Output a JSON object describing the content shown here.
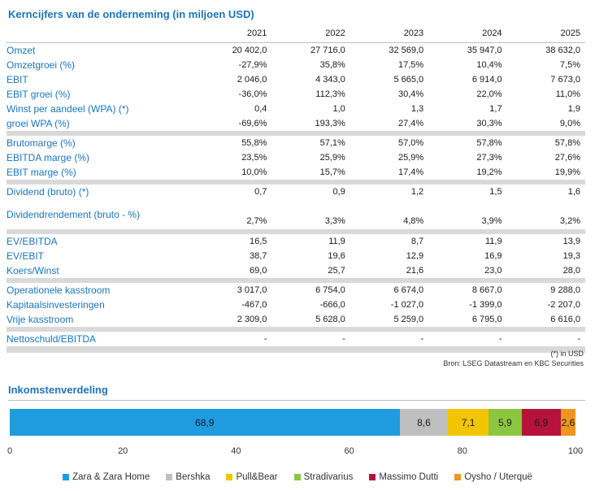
{
  "title": "Kerncijfers van de onderneming (in miljoen USD)",
  "years": [
    "2021",
    "2022",
    "2023",
    "2024",
    "2025"
  ],
  "groups": [
    [
      {
        "label": "Omzet",
        "values": [
          "20 402,0",
          "27 716,0",
          "32 569,0",
          "35 947,0",
          "38 632,0"
        ]
      },
      {
        "label": "Omzetgroei (%)",
        "values": [
          "-27,9%",
          "35,8%",
          "17,5%",
          "10,4%",
          "7,5%"
        ]
      },
      {
        "label": "EBIT",
        "values": [
          "2 046,0",
          "4 343,0",
          "5 665,0",
          "6 914,0",
          "7 673,0"
        ]
      },
      {
        "label": "EBIT groei (%)",
        "values": [
          "-36,0%",
          "112,3%",
          "30,4%",
          "22,0%",
          "11,0%"
        ]
      },
      {
        "label": "Winst per aandeel (WPA) (*)",
        "values": [
          "0,4",
          "1,0",
          "1,3",
          "1,7",
          "1,9"
        ]
      },
      {
        "label": "groei WPA (%)",
        "values": [
          "-69,6%",
          "193,3%",
          "27,4%",
          "30,3%",
          "9,0%"
        ]
      }
    ],
    [
      {
        "label": "Brutomarge (%)",
        "values": [
          "55,8%",
          "57,1%",
          "57,0%",
          "57,8%",
          "57,8%"
        ]
      },
      {
        "label": "EBITDA marge (%)",
        "values": [
          "23,5%",
          "25,9%",
          "25,9%",
          "27,3%",
          "27,6%"
        ]
      },
      {
        "label": "EBIT marge (%)",
        "values": [
          "10,0%",
          "15,7%",
          "17,4%",
          "19,2%",
          "19,9%"
        ]
      }
    ],
    [
      {
        "label": "Dividend (bruto) (*)",
        "values": [
          "0,7",
          "0,9",
          "1,2",
          "1,5",
          "1,6"
        ]
      },
      {
        "label": "Dividendrendement (bruto - %)",
        "values": [
          "2,7%",
          "3,3%",
          "4,8%",
          "3,9%",
          "3,2%"
        ],
        "tall": true
      }
    ],
    [
      {
        "label": "EV/EBITDA",
        "values": [
          "16,5",
          "11,9",
          "8,7",
          "11,9",
          "13,9"
        ]
      },
      {
        "label": "EV/EBIT",
        "values": [
          "38,7",
          "19,6",
          "12,9",
          "16,9",
          "19,3"
        ]
      },
      {
        "label": "Koers/Winst",
        "values": [
          "69,0",
          "25,7",
          "21,6",
          "23,0",
          "28,0"
        ]
      }
    ],
    [
      {
        "label": "Operationele kasstroom",
        "values": [
          "3 017,0",
          "6 754,0",
          "6 674,0",
          "8 667,0",
          "9 288,0"
        ]
      },
      {
        "label": "Kapitaalsinvesteringen",
        "values": [
          "-467,0",
          "-666,0",
          "-1 027,0",
          "-1 399,0",
          "-2 207,0"
        ]
      },
      {
        "label": "Vrije kasstroom",
        "values": [
          "2 309,0",
          "5 628,0",
          "5 259,0",
          "6 795,0",
          "6 616,0"
        ]
      }
    ],
    [
      {
        "label": "Nettoschuld/EBITDA",
        "values": [
          "-",
          "-",
          "-",
          "-",
          "-"
        ]
      }
    ]
  ],
  "footnote": "(*) in USD",
  "source": "Bron: LSEG Datastream en KBC Securities",
  "chart_title": "Inkomstenverdeling",
  "chart_data": {
    "type": "bar",
    "stacked": true,
    "orientation": "horizontal",
    "title": "Inkomstenverdeling",
    "xlim": [
      0,
      100
    ],
    "xticks": [
      "0",
      "20",
      "40",
      "60",
      "80",
      "100"
    ],
    "series": [
      {
        "name": "Zara & Zara Home",
        "value": 68.9,
        "label": "68,9",
        "color": "#1f9be0"
      },
      {
        "name": "Bershka",
        "value": 8.6,
        "label": "8,6",
        "color": "#bfbfbf"
      },
      {
        "name": "Pull&Bear",
        "value": 7.1,
        "label": "7,1",
        "color": "#f2c500"
      },
      {
        "name": "Stradivarius",
        "value": 5.9,
        "label": "5,9",
        "color": "#8cc63f"
      },
      {
        "name": "Massimo Dutti",
        "value": 6.9,
        "label": "6,9",
        "color": "#b5123d"
      },
      {
        "name": "Oysho / Uterquë",
        "value": 2.6,
        "label": "2,6",
        "color": "#f0961e"
      }
    ],
    "legend": "bottom"
  }
}
